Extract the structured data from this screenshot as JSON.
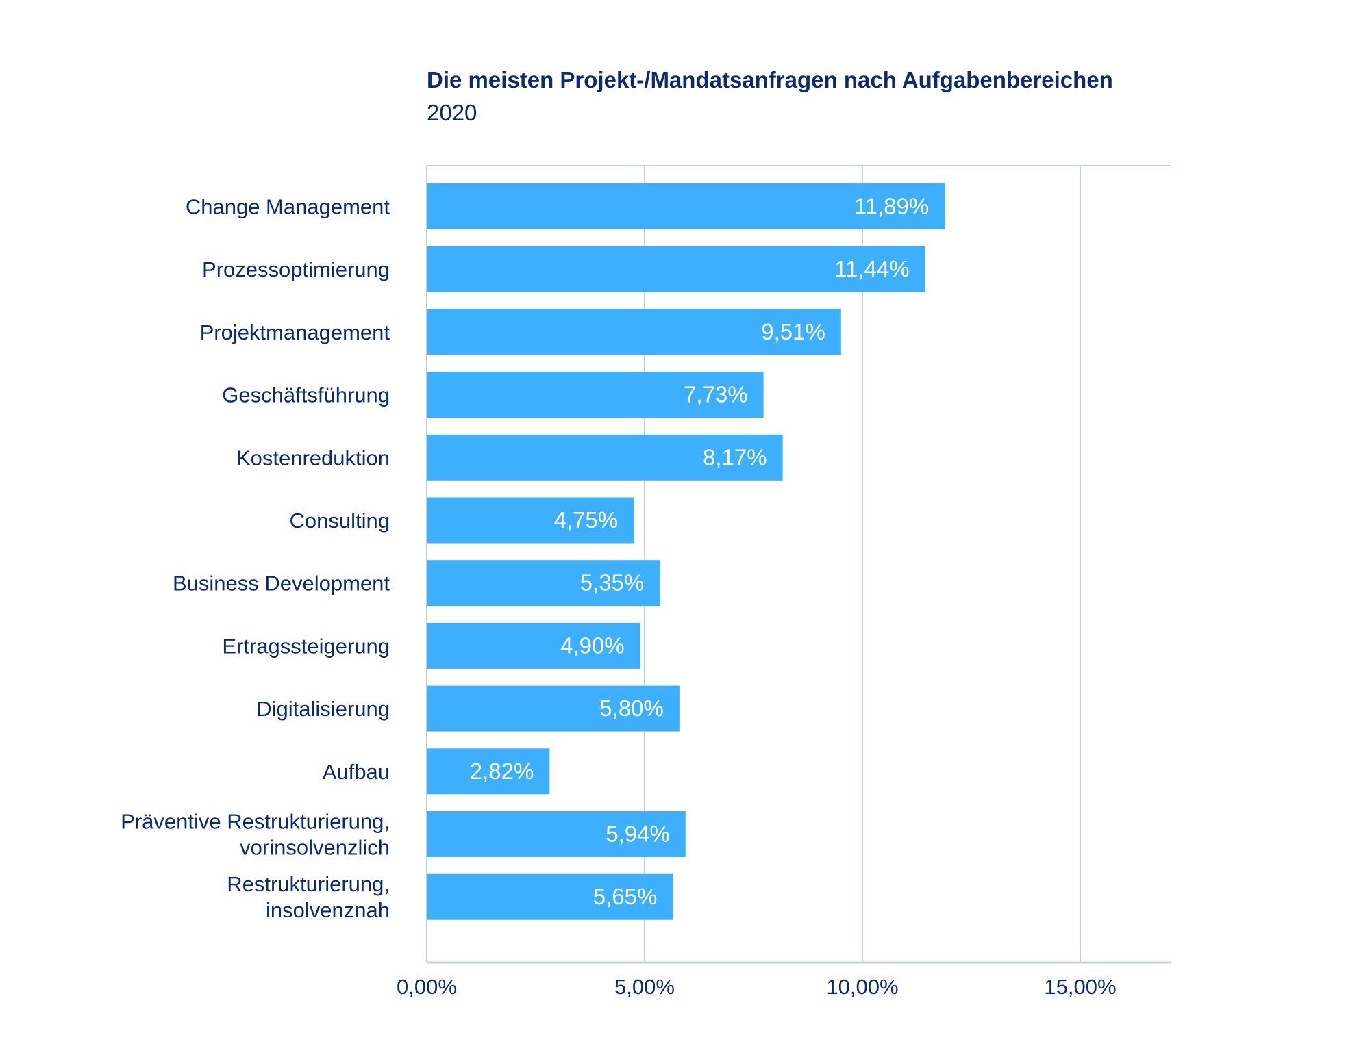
{
  "chart_data": {
    "type": "bar",
    "orientation": "horizontal",
    "title": "Die meisten Projekt-/Mandatsanfragen nach Aufgabenbereichen",
    "subtitle": "2020",
    "categories": [
      "Change Management",
      "Prozessoptimierung",
      "Projektmanagement",
      "Geschäftsführung",
      "Kostenreduktion",
      "Consulting",
      "Business Development",
      "Ertragssteigerung",
      "Digitalisierung",
      "Aufbau",
      "Präventive Restrukturierung,\nvorinsolvenzlich",
      "Restrukturierung,\ninsolvenznah"
    ],
    "values": [
      11.89,
      11.44,
      9.51,
      7.73,
      8.17,
      4.75,
      5.35,
      4.9,
      5.8,
      2.82,
      5.94,
      5.65
    ],
    "data_labels": [
      "11,89%",
      "11,44%",
      "9,51%",
      "7,73%",
      "8,17%",
      "4,75%",
      "5,35%",
      "4,90%",
      "5,80%",
      "2,82%",
      "5,94%",
      "5,65%"
    ],
    "xlim": [
      0,
      17
    ],
    "x_ticks": [
      0,
      5,
      10,
      15
    ],
    "x_tick_labels": [
      "0,00%",
      "5,00%",
      "10,00%",
      "15,00%"
    ],
    "grid": "vertical",
    "colors": {
      "bar": "#3eaffd",
      "text": "#0b2a6f",
      "grid": "#c5d1d0",
      "label": "#ffffff"
    }
  }
}
